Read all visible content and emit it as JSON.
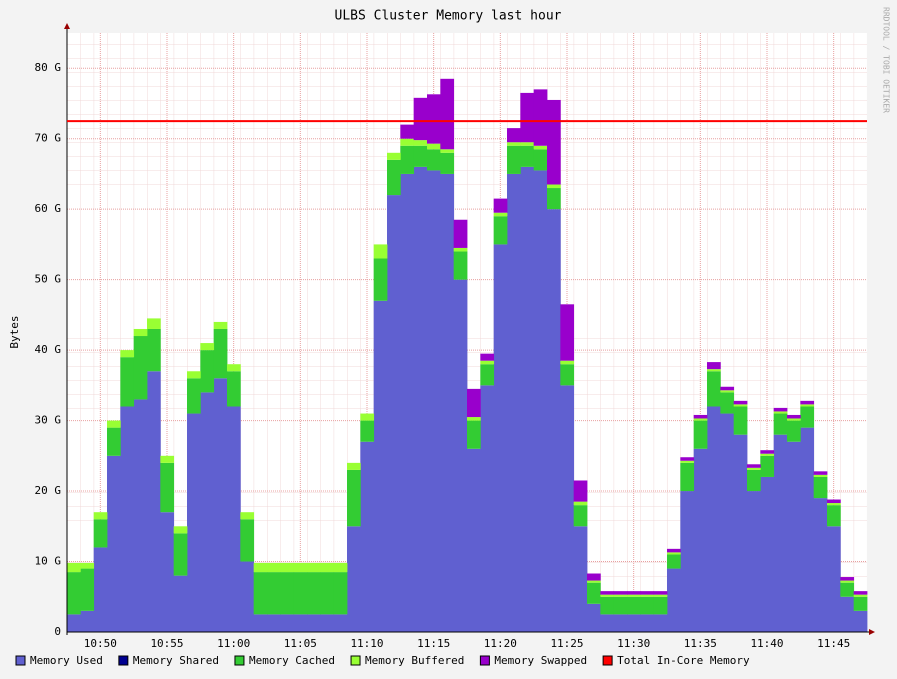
{
  "chart_data": {
    "type": "stacked_area",
    "title": "ULBS Cluster Memory last hour",
    "y_label": "Bytes",
    "watermark": "RRDTOOL / TOBI OETIKER",
    "categories": [
      null,
      null,
      "10:50",
      null,
      null,
      null,
      null,
      "10:55",
      null,
      null,
      null,
      null,
      "11:00",
      null,
      null,
      null,
      null,
      "11:05",
      null,
      null,
      null,
      null,
      "11:10",
      null,
      null,
      null,
      null,
      "11:15",
      null,
      null,
      null,
      null,
      "11:20",
      null,
      null,
      null,
      null,
      "11:25",
      null,
      null,
      null,
      null,
      "11:30",
      null,
      null,
      null,
      null,
      "11:35",
      null,
      null,
      null,
      null,
      "11:40",
      null,
      null,
      null,
      null,
      "11:45",
      null,
      null
    ],
    "ylim": [
      0,
      85
    ],
    "yticks": [
      {
        "value": 0,
        "label": "0"
      },
      {
        "value": 10,
        "label": "10 G"
      },
      {
        "value": 20,
        "label": "20 G"
      },
      {
        "value": 30,
        "label": "30 G"
      },
      {
        "value": 40,
        "label": "40 G"
      },
      {
        "value": 50,
        "label": "50 G"
      },
      {
        "value": 60,
        "label": "60 G"
      },
      {
        "value": 70,
        "label": "70 G"
      },
      {
        "value": 80,
        "label": "80 G"
      }
    ],
    "grid": true,
    "series": [
      {
        "name": "Memory Used",
        "color": "#6060d0",
        "values": [
          2.5,
          3,
          12,
          25,
          32,
          33,
          37,
          17,
          8,
          31,
          34,
          36,
          32,
          10,
          2.5,
          2.5,
          2.5,
          2.5,
          2.5,
          2.5,
          2.5,
          15,
          27,
          47,
          62,
          65,
          66,
          65.5,
          65,
          50,
          26,
          35,
          55,
          65,
          66,
          65.5,
          60,
          35,
          15,
          4,
          2.5,
          2.5,
          2.5,
          2.5,
          2.5,
          9,
          20,
          26,
          32,
          31,
          28,
          20,
          22,
          28,
          27,
          29,
          19,
          15,
          5,
          3
        ]
      },
      {
        "name": "Memory Shared",
        "color": "#000090",
        "values": [
          0,
          0,
          0,
          0,
          0,
          0,
          0,
          0,
          0,
          0,
          0,
          0,
          0,
          0,
          0,
          0,
          0,
          0,
          0,
          0,
          0,
          0,
          0,
          0,
          0,
          0,
          0,
          0,
          0,
          0,
          0,
          0,
          0,
          0,
          0,
          0,
          0,
          0,
          0,
          0,
          0,
          0,
          0,
          0,
          0,
          0,
          0,
          0,
          0,
          0,
          0,
          0,
          0,
          0,
          0,
          0,
          0,
          0,
          0,
          0
        ]
      },
      {
        "name": "Memory Cached",
        "color": "#33cc33",
        "values": [
          6,
          6,
          4,
          4,
          7,
          9,
          6,
          7,
          6,
          5,
          6,
          7,
          5,
          6,
          6,
          6,
          6,
          6,
          6,
          6,
          6,
          8,
          3,
          6,
          5,
          4,
          3,
          3,
          3,
          4,
          4,
          3,
          4,
          4,
          3,
          3,
          3,
          3,
          3,
          3,
          2.5,
          2.5,
          2.5,
          2.5,
          2.5,
          2,
          4,
          4,
          5,
          3,
          4,
          3,
          3,
          3,
          3,
          3,
          3,
          3,
          2,
          2
        ]
      },
      {
        "name": "Memory Buffered",
        "color": "#99ff33",
        "values": [
          1.3,
          0.8,
          1,
          1,
          1,
          1,
          1.5,
          1,
          1,
          1,
          1,
          1,
          1,
          1,
          1.3,
          1.3,
          1.3,
          1.3,
          1.3,
          1.3,
          1.3,
          1,
          1,
          2,
          1,
          1,
          0.8,
          0.8,
          0.5,
          0.5,
          0.5,
          0.5,
          0.5,
          0.5,
          0.5,
          0.5,
          0.5,
          0.5,
          0.5,
          0.3,
          0.3,
          0.3,
          0.3,
          0.3,
          0.3,
          0.3,
          0.3,
          0.3,
          0.3,
          0.3,
          0.3,
          0.3,
          0.3,
          0.3,
          0.3,
          0.3,
          0.3,
          0.3,
          0.3,
          0.3
        ]
      },
      {
        "name": "Memory Swapped",
        "color": "#9900cc",
        "values": [
          0,
          0,
          0,
          0,
          0,
          0,
          0,
          0,
          0,
          0,
          0,
          0,
          0,
          0,
          0,
          0,
          0,
          0,
          0,
          0,
          0,
          0,
          0,
          0,
          0,
          2,
          6,
          7,
          10,
          4,
          4,
          1,
          2,
          2,
          7,
          8,
          12,
          8,
          3,
          1,
          0.5,
          0.5,
          0.5,
          0.5,
          0.5,
          0.5,
          0.5,
          0.5,
          1,
          0.5,
          0.5,
          0.5,
          0.5,
          0.5,
          0.5,
          0.5,
          0.5,
          0.5,
          0.5,
          0.5
        ]
      }
    ],
    "hrule": {
      "name": "Total In-Core Memory",
      "color": "#ff0000",
      "value": 72.5
    }
  }
}
